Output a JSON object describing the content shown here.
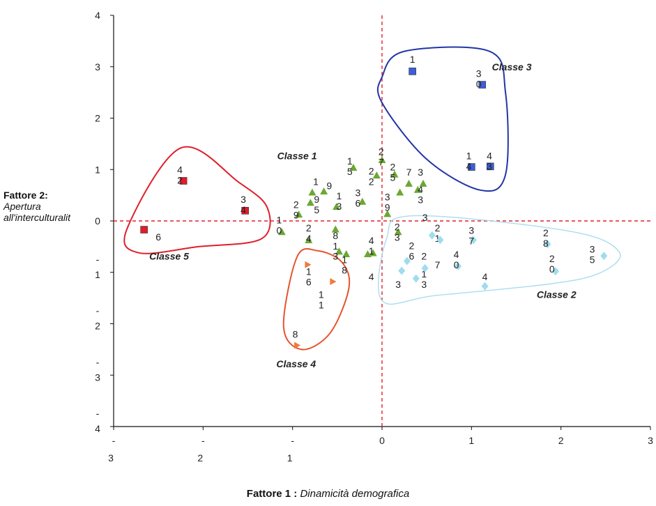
{
  "chart_data": {
    "type": "scatter",
    "xlim": [
      -3,
      3
    ],
    "ylim": [
      -4,
      4
    ],
    "xlabel": {
      "bold": "Fattore 1 :",
      "italic": "Dinamicità demografica"
    },
    "ylabel": {
      "bold": "Fattore 2:",
      "italic_1": "Apertura",
      "italic_2": "all'interculturalit"
    },
    "grid": false,
    "reference_lines": {
      "x": 0,
      "y": 0,
      "color": "#e0202e",
      "style": "dashed"
    },
    "x_ticks": [
      {
        "value": -3,
        "line1": "-",
        "line2": "3"
      },
      {
        "value": -2,
        "line1": "-",
        "line2": "2"
      },
      {
        "value": -1,
        "line1": "-",
        "line2": "1"
      },
      {
        "value": 0,
        "line1": "0",
        "line2": ""
      },
      {
        "value": 1,
        "line1": "1",
        "line2": ""
      },
      {
        "value": 2,
        "line1": "2",
        "line2": ""
      },
      {
        "value": 3,
        "line1": "3",
        "line2": ""
      }
    ],
    "y_ticks": [
      {
        "value": 4,
        "line1": "4",
        "line2": ""
      },
      {
        "value": 3,
        "line1": "3",
        "line2": ""
      },
      {
        "value": 2,
        "line1": "2",
        "line2": ""
      },
      {
        "value": 1,
        "line1": "1",
        "line2": ""
      },
      {
        "value": 0,
        "line1": "0",
        "line2": ""
      },
      {
        "value": -1,
        "line1": "-",
        "line2": "1"
      },
      {
        "value": -2,
        "line1": "-",
        "line2": "2"
      },
      {
        "value": -3,
        "line1": "-",
        "line2": "3"
      },
      {
        "value": -4,
        "line1": "-",
        "line2": "4"
      }
    ],
    "series": [
      {
        "name": "Classe 1",
        "color": "#6aa832",
        "marker": "triangle-up",
        "label_position": [
          -0.95,
          1.2
        ],
        "hull": [
          [
            -1.2,
            1.3
          ],
          [
            0.5,
            1.3
          ],
          [
            0.5,
            -1.2
          ],
          [
            -1.2,
            -1.2
          ]
        ],
        "hull_color": "",
        "points": [
          {
            "x": -1.12,
            "y": -0.22,
            "label": [
              "1",
              "0"
            ],
            "lx": -1.15,
            "ly": -0.05
          },
          {
            "x": -0.93,
            "y": 0.12,
            "label": [
              "2",
              "9"
            ],
            "lx": -0.96,
            "ly": 0.25
          },
          {
            "x": -0.8,
            "y": 0.35,
            "label": [
              "9",
              "5"
            ],
            "lx": -0.73,
            "ly": 0.35
          },
          {
            "x": -0.78,
            "y": 0.55,
            "label": [
              "1"
            ],
            "lx": -0.74,
            "ly": 0.7
          },
          {
            "x": -0.82,
            "y": -0.38,
            "label": [
              "2",
              "4"
            ],
            "lx": -0.82,
            "ly": -0.2
          },
          {
            "x": -0.65,
            "y": 0.57,
            "label": [
              "9"
            ],
            "lx": -0.59,
            "ly": 0.62
          },
          {
            "x": -0.51,
            "y": 0.27,
            "label": [
              "1",
              "3"
            ],
            "lx": -0.48,
            "ly": 0.42
          },
          {
            "x": -0.52,
            "y": -0.17,
            "label": [
              "8",
              "1"
            ],
            "lx": -0.52,
            "ly": -0.35
          },
          {
            "x": -0.48,
            "y": -0.6,
            "label": [
              "3"
            ],
            "lx": -0.52,
            "ly": -0.75
          },
          {
            "x": -0.4,
            "y": -0.65,
            "label": [
              "1",
              "8"
            ],
            "lx": -0.42,
            "ly": -0.82
          },
          {
            "x": -0.32,
            "y": 1.03,
            "label": [
              "1",
              "5"
            ],
            "lx": -0.36,
            "ly": 1.1
          },
          {
            "x": -0.22,
            "y": 0.37,
            "label": [
              "3",
              "6"
            ],
            "lx": -0.27,
            "ly": 0.48
          },
          {
            "x": -0.06,
            "y": 0.88,
            "label": [
              "2",
              "2"
            ],
            "lx": -0.12,
            "ly": 0.9
          },
          {
            "x": 0.0,
            "y": 1.18,
            "label": [
              "2",
              "7"
            ],
            "lx": -0.01,
            "ly": 1.28
          },
          {
            "x": -0.1,
            "y": -0.63,
            "label": [
              "4",
              "1"
            ],
            "lx": -0.12,
            "ly": -0.45
          },
          {
            "x": -0.16,
            "y": -0.65,
            "label": [
              "4"
            ],
            "lx": -0.12,
            "ly": -1.15
          },
          {
            "x": 0.06,
            "y": 0.13,
            "label": [
              "3",
              "9"
            ],
            "lx": 0.06,
            "ly": 0.4
          },
          {
            "x": 0.14,
            "y": 0.9,
            "label": [
              "2",
              "5"
            ],
            "lx": 0.12,
            "ly": 0.98
          },
          {
            "x": 0.18,
            "y": -0.22,
            "label": [
              "2",
              "3"
            ],
            "lx": 0.17,
            "ly": -0.18
          },
          {
            "x": 0.2,
            "y": 0.55,
            "label": [
              "7"
            ],
            "lx": 0.3,
            "ly": 0.88
          },
          {
            "x": 0.3,
            "y": 0.72,
            "label": [
              "3"
            ],
            "lx": 0.43,
            "ly": 0.88
          },
          {
            "x": 0.4,
            "y": 0.6,
            "label": [
              "4",
              "3"
            ],
            "lx": 0.43,
            "ly": 0.55
          },
          {
            "x": 0.46,
            "y": 0.72,
            "label": [
              "3"
            ],
            "lx": 0.48,
            "ly": 0.0
          }
        ]
      },
      {
        "name": "Classe 2",
        "color": "#9fdcf0",
        "marker": "diamond",
        "label_position": [
          1.95,
          -1.5
        ],
        "hull_color": "#a9dcef",
        "points": [
          {
            "x": 0.22,
            "y": -0.97,
            "label": [
              "3"
            ],
            "lx": 0.18,
            "ly": -1.3
          },
          {
            "x": 0.28,
            "y": -0.78,
            "label": [
              "2",
              "6"
            ],
            "lx": 0.33,
            "ly": -0.55
          },
          {
            "x": 0.38,
            "y": -1.12,
            "label": [
              "1",
              "3"
            ],
            "lx": 0.47,
            "ly": -1.1
          },
          {
            "x": 0.48,
            "y": -0.92,
            "label": [
              "2"
            ],
            "lx": 0.47,
            "ly": -0.75
          },
          {
            "x": 0.56,
            "y": -0.28,
            "label": [
              "2",
              "1"
            ],
            "lx": 0.62,
            "ly": -0.2
          },
          {
            "x": 0.65,
            "y": -0.37,
            "label": [
              "7"
            ],
            "lx": 0.62,
            "ly": -0.92
          },
          {
            "x": 0.85,
            "y": -0.88,
            "label": [
              "4",
              "0"
            ],
            "lx": 0.83,
            "ly": -0.72
          },
          {
            "x": 1.02,
            "y": -0.37,
            "label": [
              "3",
              "7"
            ],
            "lx": 1.0,
            "ly": -0.25
          },
          {
            "x": 1.15,
            "y": -1.27,
            "label": [
              "4"
            ],
            "lx": 1.15,
            "ly": -1.15
          },
          {
            "x": 1.85,
            "y": -0.45,
            "label": [
              "2",
              "8"
            ],
            "lx": 1.83,
            "ly": -0.3
          },
          {
            "x": 1.94,
            "y": -0.98,
            "label": [
              "2",
              "0"
            ],
            "lx": 1.9,
            "ly": -0.8
          },
          {
            "x": 2.48,
            "y": -0.68,
            "label": [
              "3",
              "5"
            ],
            "lx": 2.35,
            "ly": -0.62
          }
        ]
      },
      {
        "name": "Classe 3",
        "color": "#3d5ed6",
        "marker": "square",
        "label_position": [
          1.45,
          2.93
        ],
        "hull_color": "#2235a6",
        "points": [
          {
            "x": 0.34,
            "y": 2.91,
            "label": [
              "1"
            ],
            "lx": 0.34,
            "ly": 3.08
          },
          {
            "x": 1.12,
            "y": 2.65,
            "label": [
              "3",
              "0"
            ],
            "lx": 1.08,
            "ly": 2.8
          },
          {
            "x": 1.0,
            "y": 1.05,
            "label": [
              "1",
              "4"
            ],
            "lx": 0.97,
            "ly": 1.2
          },
          {
            "x": 1.21,
            "y": 1.06,
            "label": [
              "4",
              "3"
            ],
            "lx": 1.2,
            "ly": 1.2
          }
        ]
      },
      {
        "name": "Classe 4",
        "color": "#f07a3c",
        "marker": "triangle-right",
        "label_position": [
          -0.96,
          -2.85
        ],
        "hull_color": "#e5542e",
        "points": [
          {
            "x": -0.83,
            "y": -0.85,
            "label": [
              "1",
              "6"
            ],
            "lx": -0.82,
            "ly": -1.05
          },
          {
            "x": -0.55,
            "y": -1.18,
            "label": [
              "1",
              "1"
            ],
            "lx": -0.68,
            "ly": -1.5
          },
          {
            "x": -0.95,
            "y": -2.42,
            "label": [
              "8"
            ],
            "lx": -0.97,
            "ly": -2.27
          }
        ]
      },
      {
        "name": "Classe 5",
        "color": "#e11d2a",
        "marker": "square",
        "label_position": [
          -2.38,
          -0.75
        ],
        "hull_color": "#df1f2a",
        "points": [
          {
            "x": -2.22,
            "y": 0.78,
            "label": [
              "4",
              "2"
            ],
            "lx": -2.26,
            "ly": 0.93
          },
          {
            "x": -1.53,
            "y": 0.2,
            "label": [
              "3",
              "4"
            ],
            "lx": -1.55,
            "ly": 0.35
          },
          {
            "x": -2.66,
            "y": -0.17,
            "label": [
              "6"
            ],
            "lx": -2.5,
            "ly": -0.38
          }
        ]
      }
    ]
  }
}
